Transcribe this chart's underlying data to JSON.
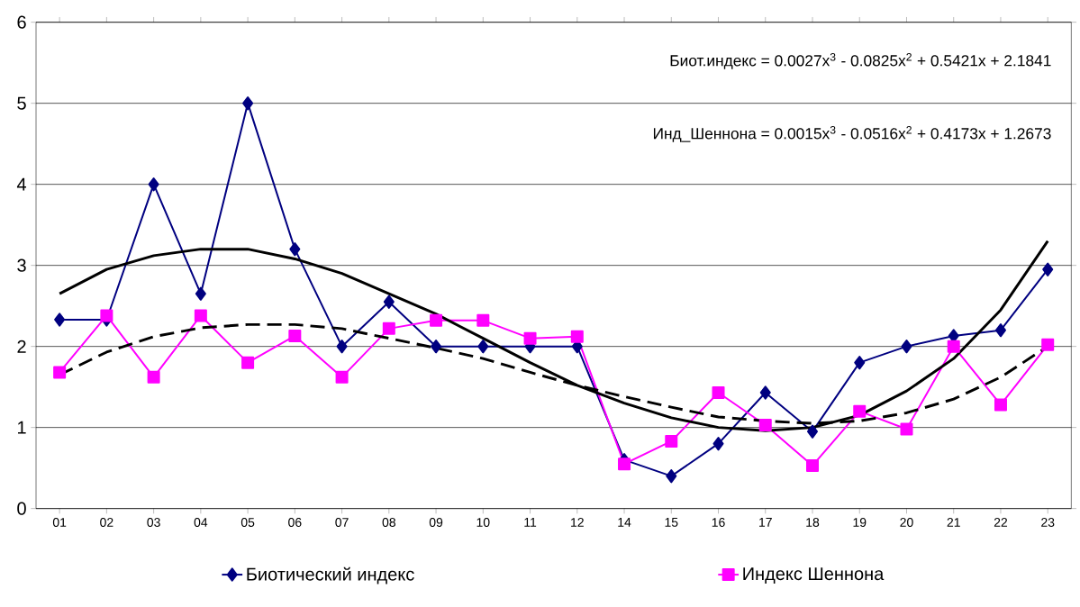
{
  "chart_data": {
    "type": "line",
    "categories": [
      "01",
      "02",
      "03",
      "04",
      "05",
      "06",
      "07",
      "08",
      "09",
      "10",
      "11",
      "12",
      "14",
      "15",
      "16",
      "17",
      "18",
      "19",
      "20",
      "21",
      "22",
      "23"
    ],
    "series": [
      {
        "name": "Биотический индекс",
        "color": "#000080",
        "marker": "diamond",
        "line_style": "solid",
        "values": [
          2.33,
          2.33,
          4.0,
          2.65,
          5.0,
          3.2,
          2.0,
          2.55,
          2.0,
          2.0,
          2.0,
          2.0,
          0.6,
          0.4,
          0.8,
          1.43,
          0.95,
          1.8,
          2.0,
          2.13,
          2.2,
          2.95
        ]
      },
      {
        "name": "Индекс Шеннона",
        "color": "#ff00ff",
        "marker": "square",
        "line_style": "solid",
        "values": [
          1.68,
          2.38,
          1.62,
          2.38,
          1.8,
          2.13,
          1.62,
          2.22,
          2.32,
          2.32,
          2.1,
          2.12,
          0.55,
          0.83,
          1.43,
          1.03,
          0.53,
          1.2,
          0.98,
          2.0,
          1.28,
          2.02
        ]
      },
      {
        "type": "line",
        "color": "#000000",
        "marker": "none",
        "line_style": "solid",
        "values": [
          2.65,
          2.95,
          3.12,
          3.2,
          3.2,
          3.08,
          2.9,
          2.65,
          2.4,
          2.1,
          1.8,
          1.52,
          1.3,
          1.12,
          1.0,
          0.96,
          1.0,
          1.15,
          1.45,
          1.85,
          2.45,
          3.3
        ]
      },
      {
        "type": "line",
        "color": "#000000",
        "marker": "none",
        "line_style": "dashed",
        "values": [
          1.65,
          1.93,
          2.12,
          2.23,
          2.27,
          2.27,
          2.22,
          2.1,
          1.98,
          1.85,
          1.68,
          1.52,
          1.38,
          1.25,
          1.13,
          1.08,
          1.05,
          1.08,
          1.18,
          1.35,
          1.62,
          2.0
        ]
      }
    ],
    "ylim": [
      0,
      6
    ],
    "yticks": [
      0,
      1,
      2,
      3,
      4,
      5,
      6
    ],
    "grid": "y",
    "legend": "bottom",
    "annotations": [
      "Биот.индекс = 0.0027x$^{3}$ - 0.0825x$^{2}$ + 0.5421x + 2.1841",
      "Инд_Шеннона = 0.0015x$^{3}$ - 0.0516x$^{2}$ + 0.4173x + 1.2673"
    ]
  }
}
